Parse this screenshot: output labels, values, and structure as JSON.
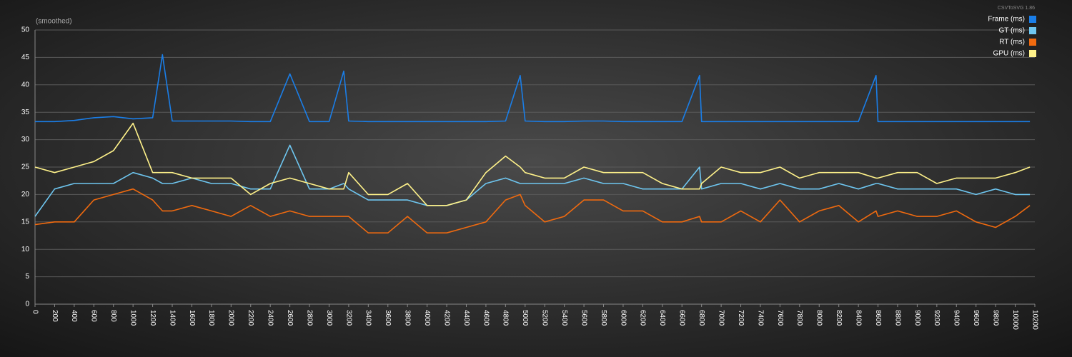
{
  "chart_data": {
    "type": "line",
    "subtitle": "(smoothed)",
    "watermark": "CSVToSVG 1.86",
    "x": [
      0,
      200,
      400,
      600,
      800,
      1000,
      1200,
      1300,
      1400,
      1600,
      1800,
      2000,
      2200,
      2400,
      2600,
      2800,
      3000,
      3150,
      3200,
      3400,
      3600,
      3800,
      4000,
      4200,
      4400,
      4600,
      4800,
      4950,
      5000,
      5200,
      5400,
      5600,
      5800,
      6000,
      6200,
      6400,
      6600,
      6780,
      6800,
      7000,
      7200,
      7400,
      7600,
      7800,
      8000,
      8200,
      8400,
      8580,
      8600,
      8800,
      9000,
      9200,
      9400,
      9600,
      9800,
      10000,
      10150
    ],
    "series": [
      {
        "name": "Frame (ms)",
        "color": "#1a7ee8",
        "values": [
          33.3,
          33.3,
          33.5,
          34,
          34.2,
          33.8,
          34,
          45.5,
          33.4,
          33.4,
          33.4,
          33.4,
          33.3,
          33.3,
          42,
          33.3,
          33.3,
          42.5,
          33.4,
          33.3,
          33.3,
          33.3,
          33.3,
          33.3,
          33.3,
          33.3,
          33.4,
          41.7,
          33.4,
          33.3,
          33.3,
          33.4,
          33.4,
          33.3,
          33.3,
          33.3,
          33.3,
          41.7,
          33.3,
          33.3,
          33.3,
          33.3,
          33.3,
          33.3,
          33.3,
          33.3,
          33.3,
          41.7,
          33.3,
          33.3,
          33.3,
          33.3,
          33.3,
          33.3,
          33.3,
          33.3,
          33.3
        ]
      },
      {
        "name": "GT (ms)",
        "color": "#6ec6f0",
        "values": [
          16,
          21,
          22,
          22,
          22,
          24,
          23,
          22,
          22,
          23,
          22,
          22,
          21,
          21,
          29,
          21,
          21,
          22,
          21,
          19,
          19,
          19,
          18,
          18,
          19,
          22,
          23,
          22,
          22,
          22,
          22,
          23,
          22,
          22,
          21,
          21,
          21,
          25,
          21,
          22,
          22,
          21,
          22,
          21,
          21,
          22,
          21,
          22,
          22,
          21,
          21,
          21,
          21,
          20,
          21,
          20,
          20
        ]
      },
      {
        "name": "RT (ms)",
        "color": "#f06a0f",
        "values": [
          14.5,
          15,
          15,
          19,
          20,
          21,
          19,
          17,
          17,
          18,
          17,
          16,
          18,
          16,
          17,
          16,
          16,
          16,
          16,
          13,
          13,
          16,
          13,
          13,
          14,
          15,
          19,
          20,
          18,
          15,
          16,
          19,
          19,
          17,
          17,
          15,
          15,
          16,
          15,
          15,
          17,
          15,
          19,
          15,
          17,
          18,
          15,
          17,
          16,
          17,
          16,
          16,
          17,
          15,
          14,
          16,
          18
        ]
      },
      {
        "name": "GPU (ms)",
        "color": "#fff28a",
        "values": [
          25,
          24,
          25,
          26,
          28,
          33,
          24,
          24,
          24,
          23,
          23,
          23,
          20,
          22,
          23,
          22,
          21,
          21,
          24,
          20,
          20,
          22,
          18,
          18,
          19,
          24,
          27,
          25,
          24,
          23,
          23,
          25,
          24,
          24,
          24,
          22,
          21,
          21,
          22,
          25,
          24,
          24,
          25,
          23,
          24,
          24,
          24,
          23,
          23,
          24,
          24,
          22,
          23,
          23,
          23,
          24,
          25
        ]
      }
    ],
    "xlim": [
      0,
      10200
    ],
    "ylim": [
      0,
      50
    ],
    "xticks": [
      0,
      200,
      400,
      600,
      800,
      1000,
      1200,
      1400,
      1600,
      1800,
      2000,
      2200,
      2400,
      2600,
      2800,
      3000,
      3200,
      3400,
      3600,
      3800,
      4000,
      4200,
      4400,
      4600,
      4800,
      5000,
      5200,
      5400,
      5600,
      5800,
      6000,
      6200,
      6400,
      6600,
      6800,
      7000,
      7200,
      7400,
      7600,
      7800,
      8000,
      8200,
      8400,
      8600,
      8800,
      9000,
      9200,
      9400,
      9600,
      9800,
      10000,
      10200
    ],
    "yticks": [
      0,
      5,
      10,
      15,
      20,
      25,
      30,
      35,
      40,
      45,
      50
    ],
    "grid": true,
    "legend": "top-right"
  }
}
